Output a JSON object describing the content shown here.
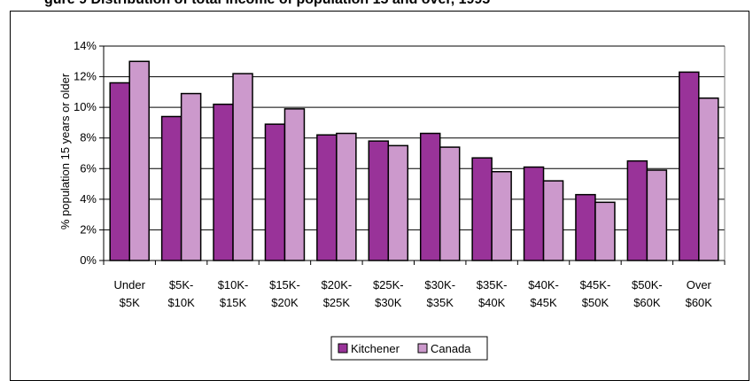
{
  "figure_title": "gure 9 Distribution of total income of population 15 and over, 1995",
  "chart_data": {
    "type": "bar",
    "ylabel": "% population 15 years or older",
    "ylim": [
      0,
      14
    ],
    "ytick_labels": [
      "0%",
      "2%",
      "4%",
      "6%",
      "8%",
      "10%",
      "12%",
      "14%"
    ],
    "ytick_values": [
      0,
      2,
      4,
      6,
      8,
      10,
      12,
      14
    ],
    "categories": [
      [
        "Under",
        "$5K"
      ],
      [
        "$5K-",
        "$10K"
      ],
      [
        "$10K-",
        "$15K"
      ],
      [
        "$15K-",
        "$20K"
      ],
      [
        "$20K-",
        "$25K"
      ],
      [
        "$25K-",
        "$30K"
      ],
      [
        "$30K-",
        "$35K"
      ],
      [
        "$35K-",
        "$40K"
      ],
      [
        "$40K-",
        "$45K"
      ],
      [
        "$45K-",
        "$50K"
      ],
      [
        "$50K-",
        "$60K"
      ],
      [
        "Over",
        "$60K"
      ]
    ],
    "series": [
      {
        "name": "Kitchener",
        "color": "#993399",
        "values": [
          11.6,
          9.4,
          10.2,
          8.9,
          8.2,
          7.8,
          8.3,
          6.7,
          6.1,
          4.3,
          6.5,
          12.3
        ]
      },
      {
        "name": "Canada",
        "color": "#cc99cc",
        "values": [
          13.0,
          10.9,
          12.2,
          9.9,
          8.3,
          7.5,
          7.4,
          5.8,
          5.2,
          3.8,
          5.9,
          10.6
        ]
      }
    ],
    "grid": true,
    "legend_position": "bottom-center"
  }
}
